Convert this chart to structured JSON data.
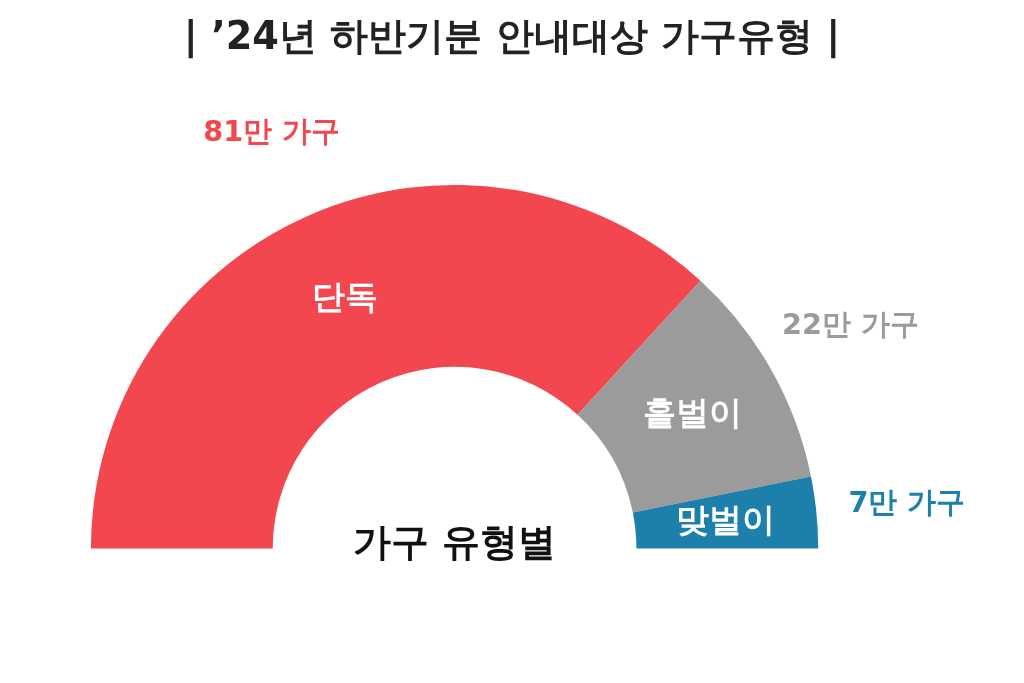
{
  "chart_data": {
    "type": "donut",
    "title": "| ’24년 하반기분 안내대상 가구유형 |",
    "categories": [
      "단독",
      "홑벌이",
      "맞벌이"
    ],
    "values": [
      81,
      22,
      7
    ],
    "colors": [
      "#f2474f",
      "#9b9b9b",
      "#1d80ab"
    ],
    "value_labels": [
      "81만 가구",
      "22만 가구",
      "7만 가구"
    ],
    "annotations": [
      "가구 유형별"
    ],
    "legend": false
  }
}
